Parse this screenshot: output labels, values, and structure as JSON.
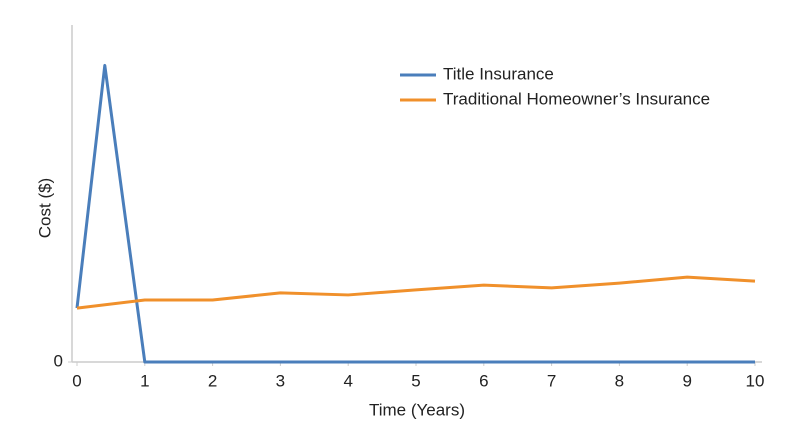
{
  "chart_data": {
    "type": "line",
    "xlabel": "Time (Years)",
    "ylabel": "Cost ($)",
    "xlim": [
      0,
      10
    ],
    "xticks": [
      0,
      1,
      2,
      3,
      4,
      5,
      6,
      7,
      8,
      9,
      10
    ],
    "ylim": [
      0,
      100
    ],
    "yticks": [
      0
    ],
    "legend": "top-right",
    "series": [
      {
        "name": "Title Insurance",
        "color": "#4a7ebb",
        "x": [
          0,
          0.41,
          1,
          2,
          3,
          4,
          5,
          6,
          7,
          8,
          9,
          10
        ],
        "values": [
          16,
          88,
          0,
          0,
          0,
          0,
          0,
          0,
          0,
          0,
          0,
          0
        ]
      },
      {
        "name": "Traditional Homeowner’s Insurance",
        "color": "#f0902b",
        "x": [
          0,
          1,
          2,
          3,
          4,
          5,
          6,
          7,
          8,
          9,
          10
        ],
        "values": [
          16,
          18.4,
          18.4,
          20.5,
          19.9,
          21.4,
          22.8,
          22,
          23.4,
          25.2,
          24
        ]
      }
    ]
  }
}
